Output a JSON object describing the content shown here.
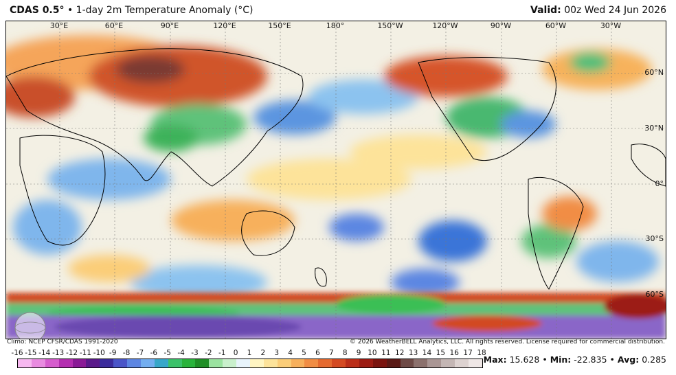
{
  "header": {
    "model": "CDAS 0.5°",
    "bullet": "•",
    "product": "1-day 2m Temperature Anomaly (°C)",
    "valid_label": "Valid:",
    "valid_time": "00z Wed 24 Jun 2026"
  },
  "map": {
    "lon_labels": [
      "30°E",
      "60°E",
      "90°E",
      "120°E",
      "150°E",
      "180°",
      "150°W",
      "120°W",
      "90°W",
      "60°W",
      "30°W"
    ],
    "lat_labels": [
      "60°N",
      "30°N",
      "0°",
      "30°S",
      "60°S"
    ]
  },
  "footer": {
    "climo": "Climo: NCEP CFSR/CDAS 1991-2020",
    "copyright": "© 2026 WeatherBELL Analytics, LLC. All rights reserved. License required for commercial distribution."
  },
  "colorbar": {
    "ticks": [
      "-16",
      "-15",
      "-14",
      "-13",
      "-12",
      "-11",
      "-10",
      "-9",
      "-8",
      "-7",
      "-6",
      "-5",
      "-4",
      "-3",
      "-2",
      "-1",
      "0",
      "1",
      "2",
      "3",
      "4",
      "5",
      "6",
      "7",
      "8",
      "9",
      "10",
      "11",
      "12",
      "13",
      "14",
      "15",
      "16",
      "17",
      "18"
    ],
    "colors": [
      "#f7b8f0",
      "#e98be0",
      "#d65ccd",
      "#b42eb0",
      "#8a1a96",
      "#5a1a8a",
      "#3b2c9c",
      "#4a55c8",
      "#5d86e2",
      "#73aef0",
      "#37a7c9",
      "#3bc26a",
      "#29b33b",
      "#1f8f26",
      "#9be3a0",
      "#c9f0cc",
      "#e8f4fb",
      "#fff5c2",
      "#fde39a",
      "#fbcd78",
      "#f7b05c",
      "#f18d44",
      "#e56a30",
      "#d44a22",
      "#bb2e19",
      "#9c1c13",
      "#7a140f",
      "#5a1a16",
      "#6e4a46",
      "#8c716d",
      "#aa9694",
      "#c4b6b4",
      "#ddd2d0",
      "#efe7e6"
    ]
  },
  "stats": {
    "max_label": "Max:",
    "max": "15.628",
    "min_label": "Min:",
    "min": "-22.835",
    "avg_label": "Avg:",
    "avg": "0.285",
    "bullet": "•"
  }
}
